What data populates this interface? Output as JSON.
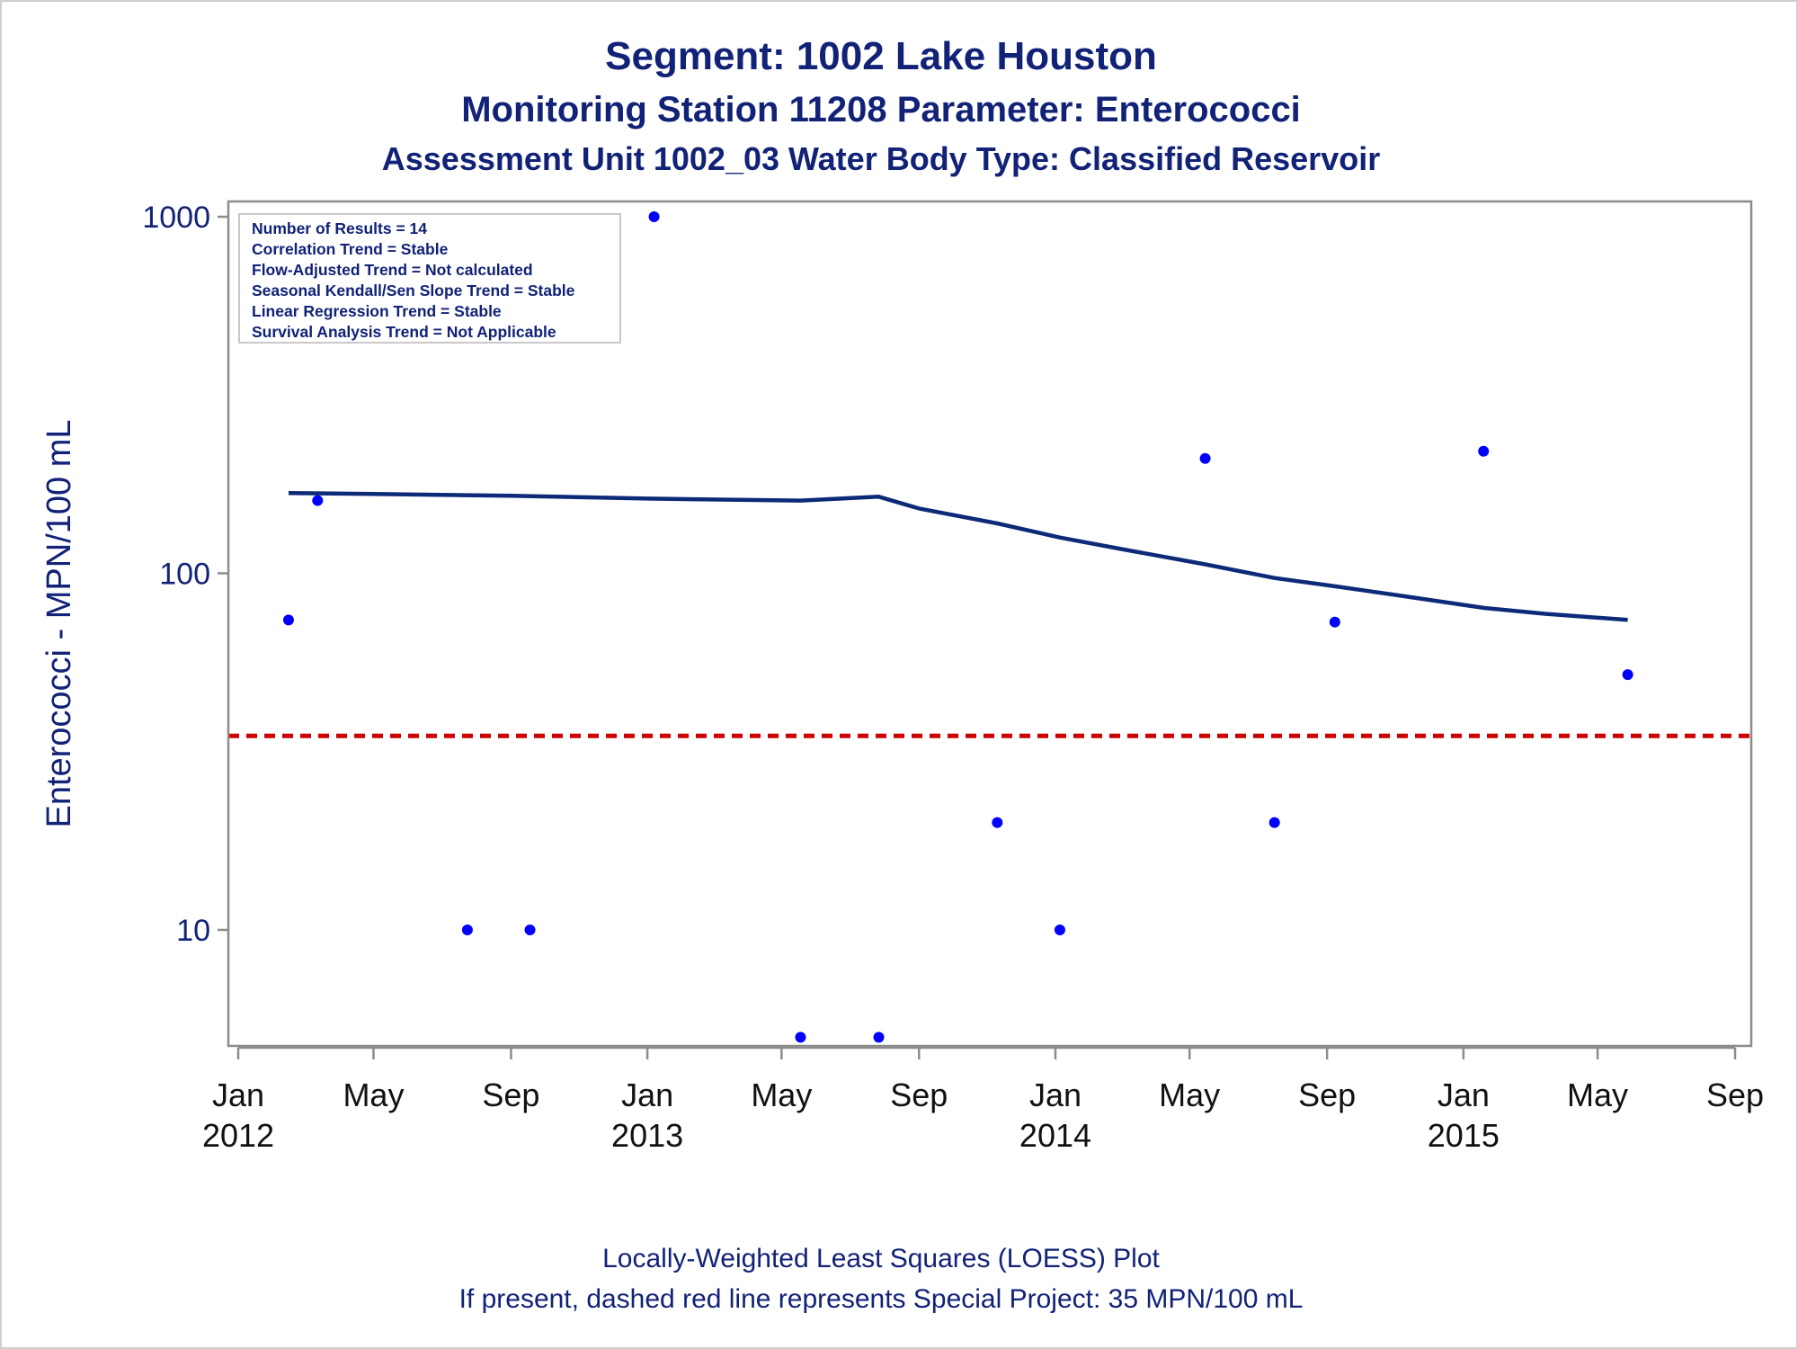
{
  "titles": {
    "line1": "Segment: 1002  Lake Houston",
    "line2": "Monitoring Station 11208 Parameter: Enterococci",
    "line3": "Assessment Unit 1002_03   Water Body Type: Classified Reservoir"
  },
  "footnotes": {
    "line1": "Locally-Weighted Least Squares (LOESS) Plot",
    "line2": "If present, dashed red line represents Special Project: 35 MPN/100 mL"
  },
  "stats_box": [
    "Number of Results = 14",
    "Correlation Trend = Stable",
    "Flow-Adjusted Trend = Not calculated",
    "Seasonal Kendall/Sen Slope Trend = Stable",
    "Linear Regression Trend = Stable",
    "Survival Analysis Trend = Not Applicable"
  ],
  "colors": {
    "points": "#0000ff",
    "loess_line": "#0d2a78",
    "reference_line": "#cc0000",
    "text": "#112277",
    "axis": "#8c8c8c"
  },
  "chart_data": {
    "type": "scatter",
    "ylabel": "Enterococci - MPN/100 mL",
    "xlabel": "",
    "yscale": "log",
    "ylim": [
      5,
      1000
    ],
    "xlim": [
      "2012-01-01",
      "2015-09-01"
    ],
    "y_ticks": [
      {
        "value": 10,
        "label": "10"
      },
      {
        "value": 100,
        "label": "100"
      },
      {
        "value": 1000,
        "label": "1000"
      }
    ],
    "x_ticks": [
      {
        "date": "2012-01-01",
        "label": "Jan",
        "year": "2012"
      },
      {
        "date": "2012-05-01",
        "label": "May",
        "year": ""
      },
      {
        "date": "2012-09-01",
        "label": "Sep",
        "year": ""
      },
      {
        "date": "2013-01-01",
        "label": "Jan",
        "year": "2013"
      },
      {
        "date": "2013-05-01",
        "label": "May",
        "year": ""
      },
      {
        "date": "2013-09-01",
        "label": "Sep",
        "year": ""
      },
      {
        "date": "2014-01-01",
        "label": "Jan",
        "year": "2014"
      },
      {
        "date": "2014-05-01",
        "label": "May",
        "year": ""
      },
      {
        "date": "2014-09-01",
        "label": "Sep",
        "year": ""
      },
      {
        "date": "2015-01-01",
        "label": "Jan",
        "year": "2015"
      },
      {
        "date": "2015-05-01",
        "label": "May",
        "year": ""
      },
      {
        "date": "2015-09-01",
        "label": "Sep",
        "year": ""
      }
    ],
    "series": [
      {
        "type": "scatter",
        "points": [
          {
            "x": "2012-02-15",
            "y": 74
          },
          {
            "x": "2012-03-12",
            "y": 160
          },
          {
            "x": "2012-07-24",
            "y": 10
          },
          {
            "x": "2012-09-18",
            "y": 10
          },
          {
            "x": "2013-01-07",
            "y": 1000
          },
          {
            "x": "2013-05-18",
            "y": 5
          },
          {
            "x": "2013-07-27",
            "y": 5
          },
          {
            "x": "2013-11-10",
            "y": 20
          },
          {
            "x": "2014-01-05",
            "y": 10
          },
          {
            "x": "2014-05-15",
            "y": 210
          },
          {
            "x": "2014-07-16",
            "y": 20
          },
          {
            "x": "2014-09-08",
            "y": 73
          },
          {
            "x": "2015-01-19",
            "y": 220
          },
          {
            "x": "2015-05-28",
            "y": 52
          }
        ]
      },
      {
        "type": "line",
        "points": [
          {
            "x": "2012-02-15",
            "y": 168
          },
          {
            "x": "2012-05-01",
            "y": 167
          },
          {
            "x": "2012-09-01",
            "y": 165
          },
          {
            "x": "2013-01-01",
            "y": 162
          },
          {
            "x": "2013-05-18",
            "y": 160
          },
          {
            "x": "2013-07-27",
            "y": 164
          },
          {
            "x": "2013-09-01",
            "y": 152
          },
          {
            "x": "2013-11-10",
            "y": 138
          },
          {
            "x": "2014-01-05",
            "y": 126
          },
          {
            "x": "2014-03-01",
            "y": 117
          },
          {
            "x": "2014-05-15",
            "y": 106
          },
          {
            "x": "2014-07-16",
            "y": 97
          },
          {
            "x": "2014-09-08",
            "y": 92
          },
          {
            "x": "2014-11-01",
            "y": 87
          },
          {
            "x": "2015-01-19",
            "y": 80
          },
          {
            "x": "2015-03-15",
            "y": 77
          },
          {
            "x": "2015-05-28",
            "y": 74
          }
        ]
      }
    ],
    "reference_line": {
      "y": 35,
      "style": "dashed"
    }
  }
}
